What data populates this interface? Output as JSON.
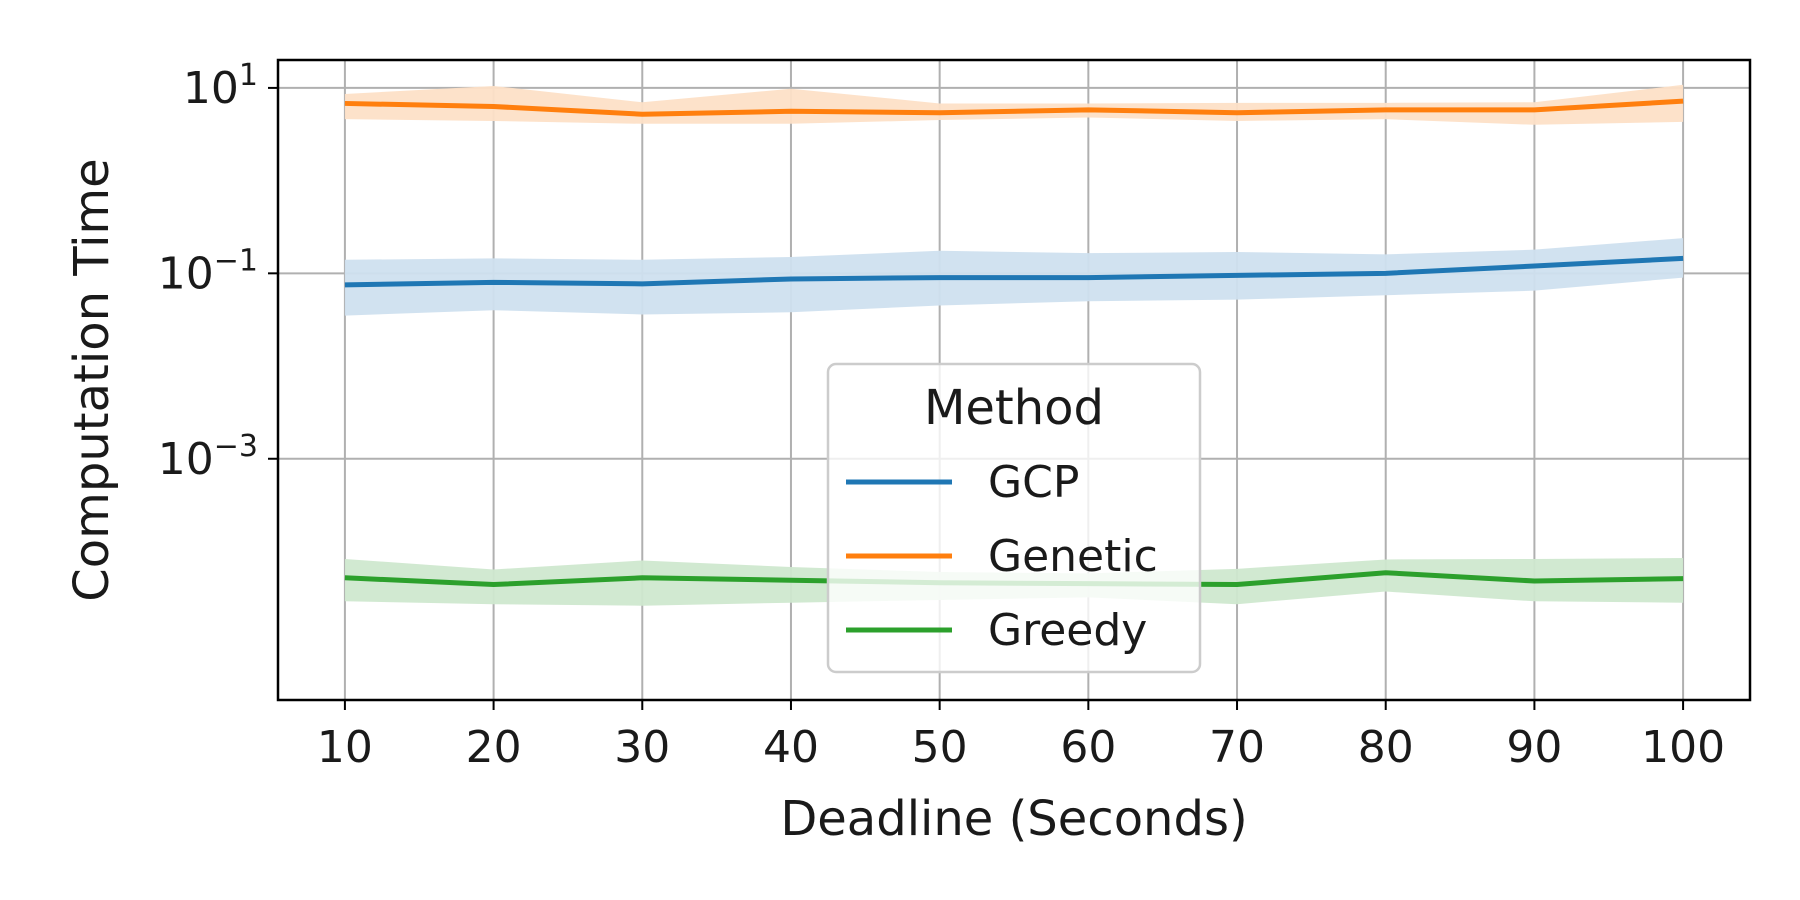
{
  "chart_data": {
    "type": "line",
    "xlabel": "Deadline (Seconds)",
    "ylabel": "Computation Time",
    "x": [
      10,
      20,
      30,
      40,
      50,
      60,
      70,
      80,
      90,
      100
    ],
    "xlim": [
      5.5,
      104.5
    ],
    "ylim": [
      2.5e-06,
      20
    ],
    "yscale": "log",
    "y_ticks": [
      {
        "value": 10,
        "base": "10",
        "exp": "1"
      },
      {
        "value": 0.1,
        "base": "10",
        "exp": "−1"
      },
      {
        "value": 0.001,
        "base": "10",
        "exp": "−3"
      }
    ],
    "grid": true,
    "legend": {
      "title": "Method",
      "placement": "center-bottom"
    },
    "series": [
      {
        "name": "GCP",
        "color": "#1f77b4",
        "band_color": "#cfe0ef",
        "values": [
          0.075,
          0.08,
          0.077,
          0.087,
          0.09,
          0.09,
          0.095,
          0.1,
          0.12,
          0.145
        ],
        "lower": [
          0.035,
          0.04,
          0.036,
          0.038,
          0.045,
          0.05,
          0.052,
          0.058,
          0.065,
          0.09
        ],
        "upper": [
          0.14,
          0.145,
          0.14,
          0.15,
          0.175,
          0.165,
          0.17,
          0.16,
          0.18,
          0.24
        ]
      },
      {
        "name": "Genetic",
        "color": "#ff7f0e",
        "band_color": "#fde0c7",
        "values": [
          6.8,
          6.3,
          5.2,
          5.6,
          5.4,
          5.8,
          5.4,
          5.8,
          5.8,
          7.2
        ],
        "lower": [
          4.6,
          4.4,
          4.1,
          4.1,
          4.5,
          4.8,
          4.4,
          4.6,
          4.0,
          4.3
        ],
        "upper": [
          8.6,
          10.5,
          7.0,
          9.8,
          6.8,
          6.8,
          6.9,
          6.9,
          7.0,
          10.8
        ]
      },
      {
        "name": "Greedy",
        "color": "#2ca02c",
        "band_color": "#cfe8cf",
        "values": [
          5.2e-05,
          4.4e-05,
          5.2e-05,
          4.9e-05,
          4.6e-05,
          4.5e-05,
          4.4e-05,
          5.9e-05,
          4.8e-05,
          5.1e-05
        ],
        "lower": [
          2.9e-05,
          2.7e-05,
          2.6e-05,
          2.8e-05,
          3e-05,
          3.2e-05,
          2.7e-05,
          3.7e-05,
          2.9e-05,
          2.8e-05
        ],
        "upper": [
          8.3e-05,
          6.4e-05,
          8e-05,
          6.8e-05,
          6e-05,
          5.8e-05,
          6.5e-05,
          8.2e-05,
          8.3e-05,
          8.5e-05
        ]
      }
    ]
  }
}
